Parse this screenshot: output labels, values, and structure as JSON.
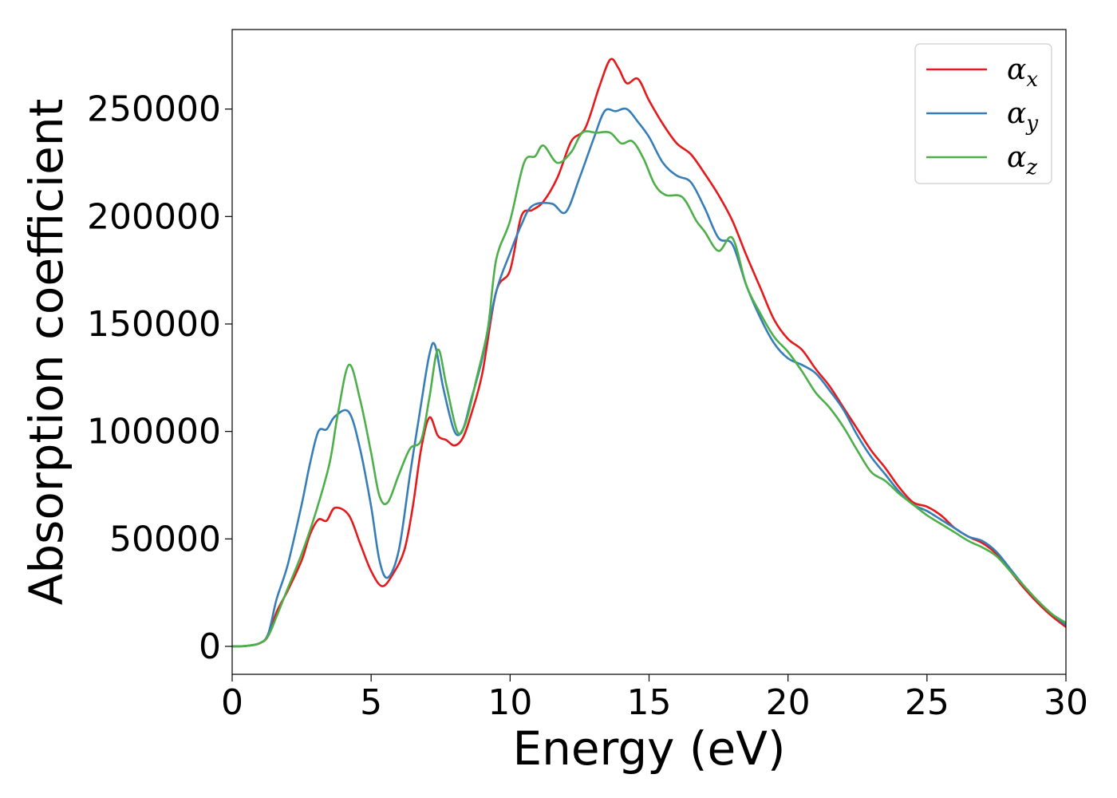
{
  "chart_data": {
    "type": "line",
    "xlabel": "Energy (eV)",
    "ylabel": "Absorption coefficient",
    "xlim": [
      0,
      30
    ],
    "ylim": [
      -13000,
      287000
    ],
    "xticks": [
      0,
      5,
      10,
      15,
      20,
      25,
      30
    ],
    "xtick_labels": [
      "0",
      "5",
      "10",
      "15",
      "20",
      "25",
      "30"
    ],
    "yticks": [
      0,
      50000,
      100000,
      150000,
      200000,
      250000
    ],
    "ytick_labels": [
      "0",
      "50000",
      "100000",
      "150000",
      "200000",
      "250000"
    ],
    "grid": false,
    "legend_position": "top-right",
    "series": [
      {
        "name": "α",
        "subscript": "x",
        "color": "#e41a1c",
        "points": [
          [
            0,
            0
          ],
          [
            0.5,
            200
          ],
          [
            1,
            1500
          ],
          [
            1.3,
            5000
          ],
          [
            1.6,
            16000
          ],
          [
            2,
            26000
          ],
          [
            2.5,
            40000
          ],
          [
            2.8,
            52000
          ],
          [
            3.1,
            59000
          ],
          [
            3.4,
            58500
          ],
          [
            3.7,
            64500
          ],
          [
            4.2,
            61000
          ],
          [
            4.6,
            48000
          ],
          [
            5,
            35000
          ],
          [
            5.4,
            28000
          ],
          [
            5.8,
            34000
          ],
          [
            6.2,
            45000
          ],
          [
            6.5,
            65000
          ],
          [
            6.8,
            92000
          ],
          [
            7.1,
            106500
          ],
          [
            7.4,
            98000
          ],
          [
            7.7,
            96000
          ],
          [
            8,
            93500
          ],
          [
            8.3,
            97000
          ],
          [
            8.6,
            108000
          ],
          [
            9,
            127000
          ],
          [
            9.5,
            165000
          ],
          [
            10,
            175000
          ],
          [
            10.4,
            200000
          ],
          [
            10.8,
            203000
          ],
          [
            11.2,
            207000
          ],
          [
            11.7,
            218000
          ],
          [
            12.2,
            235000
          ],
          [
            12.7,
            241000
          ],
          [
            13.2,
            260000
          ],
          [
            13.6,
            273000
          ],
          [
            13.9,
            269000
          ],
          [
            14.2,
            262000
          ],
          [
            14.6,
            264000
          ],
          [
            15,
            254000
          ],
          [
            15.5,
            243000
          ],
          [
            16,
            234000
          ],
          [
            16.5,
            229000
          ],
          [
            17,
            220000
          ],
          [
            17.5,
            210000
          ],
          [
            18,
            198000
          ],
          [
            18.5,
            182000
          ],
          [
            19,
            167000
          ],
          [
            19.5,
            152000
          ],
          [
            20,
            143000
          ],
          [
            20.5,
            138000
          ],
          [
            21,
            129000
          ],
          [
            21.5,
            121000
          ],
          [
            22,
            111000
          ],
          [
            22.5,
            101000
          ],
          [
            23,
            91000
          ],
          [
            23.5,
            83000
          ],
          [
            24,
            74000
          ],
          [
            24.5,
            67000
          ],
          [
            25,
            65000
          ],
          [
            25.5,
            61000
          ],
          [
            26,
            55000
          ],
          [
            26.5,
            51000
          ],
          [
            27,
            48000
          ],
          [
            27.5,
            43000
          ],
          [
            28,
            35000
          ],
          [
            28.5,
            27000
          ],
          [
            29,
            20000
          ],
          [
            29.5,
            14000
          ],
          [
            30,
            9000
          ]
        ]
      },
      {
        "name": "α",
        "subscript": "y",
        "color": "#377eb8",
        "points": [
          [
            0,
            0
          ],
          [
            0.5,
            200
          ],
          [
            1,
            1500
          ],
          [
            1.3,
            6000
          ],
          [
            1.6,
            22000
          ],
          [
            2,
            38000
          ],
          [
            2.5,
            66000
          ],
          [
            2.8,
            85000
          ],
          [
            3.1,
            100000
          ],
          [
            3.4,
            101000
          ],
          [
            3.7,
            107000
          ],
          [
            4.2,
            109000
          ],
          [
            4.6,
            92000
          ],
          [
            5,
            65000
          ],
          [
            5.3,
            40000
          ],
          [
            5.6,
            32000
          ],
          [
            6,
            45000
          ],
          [
            6.4,
            80000
          ],
          [
            6.8,
            113000
          ],
          [
            7.1,
            136000
          ],
          [
            7.3,
            140000
          ],
          [
            7.6,
            120000
          ],
          [
            8,
            100000
          ],
          [
            8.3,
            101000
          ],
          [
            8.6,
            115000
          ],
          [
            9,
            134000
          ],
          [
            9.5,
            165000
          ],
          [
            10,
            183000
          ],
          [
            10.4,
            196000
          ],
          [
            10.8,
            205000
          ],
          [
            11.5,
            206000
          ],
          [
            12,
            202000
          ],
          [
            12.5,
            218000
          ],
          [
            13,
            236000
          ],
          [
            13.4,
            249000
          ],
          [
            13.8,
            249000
          ],
          [
            14.2,
            250000
          ],
          [
            14.6,
            244000
          ],
          [
            15,
            237000
          ],
          [
            15.5,
            225000
          ],
          [
            16,
            219000
          ],
          [
            16.5,
            216000
          ],
          [
            17,
            204000
          ],
          [
            17.5,
            190000
          ],
          [
            18,
            187000
          ],
          [
            18.5,
            168000
          ],
          [
            19,
            153000
          ],
          [
            19.5,
            141000
          ],
          [
            20,
            134000
          ],
          [
            20.5,
            131000
          ],
          [
            21,
            127000
          ],
          [
            21.5,
            119000
          ],
          [
            22,
            110000
          ],
          [
            22.5,
            98000
          ],
          [
            23,
            88000
          ],
          [
            23.5,
            80000
          ],
          [
            24,
            72000
          ],
          [
            24.5,
            66000
          ],
          [
            25,
            63000
          ],
          [
            25.5,
            59000
          ],
          [
            26,
            55000
          ],
          [
            26.5,
            51000
          ],
          [
            27,
            49000
          ],
          [
            27.5,
            44000
          ],
          [
            28,
            36000
          ],
          [
            28.5,
            28000
          ],
          [
            29,
            21000
          ],
          [
            29.5,
            15000
          ],
          [
            30,
            10000
          ]
        ]
      },
      {
        "name": "α",
        "subscript": "z",
        "color": "#4daf4a",
        "points": [
          [
            0,
            0
          ],
          [
            0.5,
            200
          ],
          [
            1,
            1500
          ],
          [
            1.3,
            5000
          ],
          [
            1.6,
            14000
          ],
          [
            2,
            27000
          ],
          [
            2.5,
            43000
          ],
          [
            3,
            62000
          ],
          [
            3.5,
            85000
          ],
          [
            3.8,
            108000
          ],
          [
            4.2,
            131000
          ],
          [
            4.6,
            115000
          ],
          [
            5,
            90000
          ],
          [
            5.3,
            70000
          ],
          [
            5.6,
            67000
          ],
          [
            6,
            80000
          ],
          [
            6.4,
            92000
          ],
          [
            6.8,
            96000
          ],
          [
            7.1,
            116000
          ],
          [
            7.4,
            138000
          ],
          [
            7.7,
            122000
          ],
          [
            8.1,
            100000
          ],
          [
            8.4,
            104000
          ],
          [
            8.8,
            125000
          ],
          [
            9.2,
            148000
          ],
          [
            9.5,
            180000
          ],
          [
            10,
            198000
          ],
          [
            10.5,
            225000
          ],
          [
            10.9,
            228000
          ],
          [
            11.2,
            233000
          ],
          [
            11.7,
            225000
          ],
          [
            12.2,
            230000
          ],
          [
            12.6,
            239000
          ],
          [
            13.1,
            239000
          ],
          [
            13.6,
            239000
          ],
          [
            14,
            234000
          ],
          [
            14.4,
            235000
          ],
          [
            14.8,
            227000
          ],
          [
            15.2,
            215000
          ],
          [
            15.6,
            210000
          ],
          [
            16.2,
            209000
          ],
          [
            16.7,
            198000
          ],
          [
            17,
            193000
          ],
          [
            17.5,
            184000
          ],
          [
            18,
            190000
          ],
          [
            18.5,
            168000
          ],
          [
            19,
            155000
          ],
          [
            19.5,
            144000
          ],
          [
            20,
            137000
          ],
          [
            20.5,
            128000
          ],
          [
            21,
            118000
          ],
          [
            21.5,
            111000
          ],
          [
            22,
            102000
          ],
          [
            22.5,
            91000
          ],
          [
            23,
            81000
          ],
          [
            23.5,
            77000
          ],
          [
            24,
            71000
          ],
          [
            24.5,
            66000
          ],
          [
            25,
            61000
          ],
          [
            25.5,
            57000
          ],
          [
            26,
            53000
          ],
          [
            26.5,
            49000
          ],
          [
            27,
            46000
          ],
          [
            27.5,
            42000
          ],
          [
            28,
            35000
          ],
          [
            28.5,
            28000
          ],
          [
            29,
            21000
          ],
          [
            29.5,
            15000
          ],
          [
            30,
            11000
          ]
        ]
      }
    ]
  }
}
